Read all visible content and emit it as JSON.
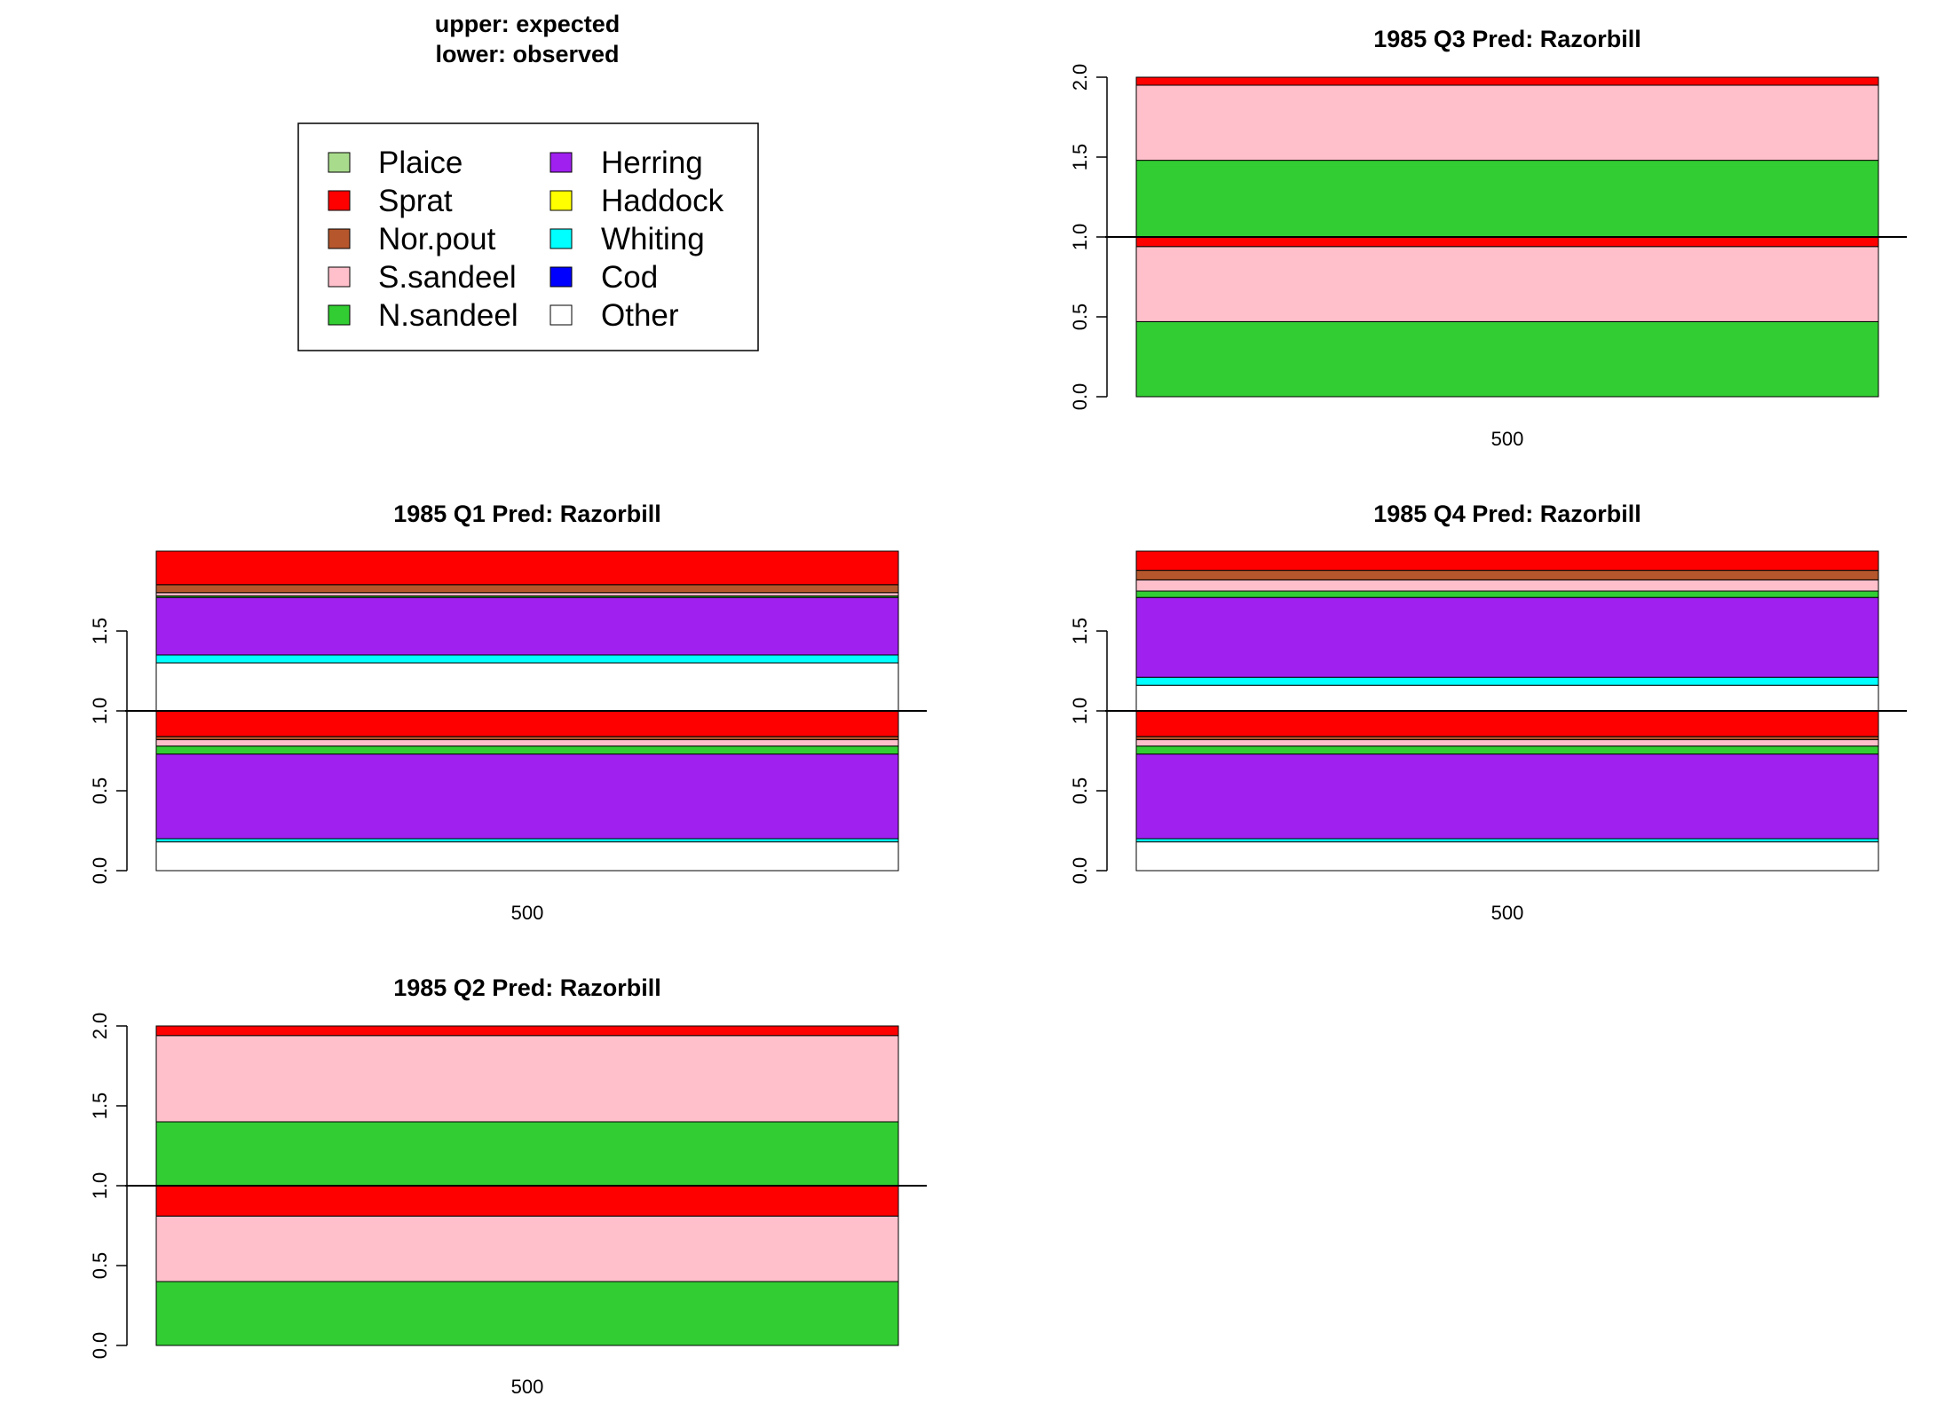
{
  "header": {
    "line1": "upper: expected",
    "line2": "lower: observed"
  },
  "legend": {
    "items": [
      {
        "label": "Plaice",
        "color": "#a8dc8c"
      },
      {
        "label": "Sprat",
        "color": "#ff0000"
      },
      {
        "label": "Nor.pout",
        "color": "#b5562c"
      },
      {
        "label": "S.sandeel",
        "color": "#ffc0cb"
      },
      {
        "label": "N.sandeel",
        "color": "#32cd32"
      },
      {
        "label": "Herring",
        "color": "#a020f0"
      },
      {
        "label": "Haddock",
        "color": "#ffff00"
      },
      {
        "label": "Whiting",
        "color": "#00ffff"
      },
      {
        "label": "Cod",
        "color": "#0000ff"
      },
      {
        "label": "Other",
        "color": "#ffffff"
      }
    ]
  },
  "chart_data": [
    {
      "type": "bar",
      "stacked": true,
      "title": "1985 Q3  Pred: Razorbill",
      "categories": [
        "500"
      ],
      "ylim": [
        0,
        2
      ],
      "yticks": [
        "0.0",
        "0.5",
        "1.0",
        "1.5",
        "2.0"
      ],
      "yticks_values": [
        0,
        0.5,
        1,
        1.5,
        2
      ],
      "reference_line": 1.0,
      "observed_lower": [
        {
          "species": "N.sandeel",
          "value": 0.47
        },
        {
          "species": "S.sandeel",
          "value": 0.47
        },
        {
          "species": "Sprat",
          "value": 0.06
        }
      ],
      "expected_upper": [
        {
          "species": "N.sandeel",
          "value": 0.48
        },
        {
          "species": "S.sandeel",
          "value": 0.47
        },
        {
          "species": "Sprat",
          "value": 0.05
        }
      ]
    },
    {
      "type": "bar",
      "stacked": true,
      "title": "1985 Q1  Pred: Razorbill",
      "categories": [
        "500"
      ],
      "ylim": [
        0,
        2
      ],
      "yticks": [
        "0.0",
        "0.5",
        "1.0",
        "1.5"
      ],
      "yticks_values": [
        0,
        0.5,
        1,
        1.5
      ],
      "reference_line": 1.0,
      "observed_lower": [
        {
          "species": "Other",
          "value": 0.18
        },
        {
          "species": "Whiting",
          "value": 0.02
        },
        {
          "species": "Herring",
          "value": 0.53
        },
        {
          "species": "N.sandeel",
          "value": 0.05
        },
        {
          "species": "S.sandeel",
          "value": 0.04
        },
        {
          "species": "Nor.pout",
          "value": 0.02
        },
        {
          "species": "Sprat",
          "value": 0.16
        }
      ],
      "expected_upper": [
        {
          "species": "Other",
          "value": 0.3
        },
        {
          "species": "Whiting",
          "value": 0.05
        },
        {
          "species": "Herring",
          "value": 0.36
        },
        {
          "species": "N.sandeel",
          "value": 0.01
        },
        {
          "species": "S.sandeel",
          "value": 0.02
        },
        {
          "species": "Nor.pout",
          "value": 0.05
        },
        {
          "species": "Sprat",
          "value": 0.21
        }
      ]
    },
    {
      "type": "bar",
      "stacked": true,
      "title": "1985 Q4  Pred: Razorbill",
      "categories": [
        "500"
      ],
      "ylim": [
        0,
        2
      ],
      "yticks": [
        "0.0",
        "0.5",
        "1.0",
        "1.5"
      ],
      "yticks_values": [
        0,
        0.5,
        1,
        1.5
      ],
      "reference_line": 1.0,
      "observed_lower": [
        {
          "species": "Other",
          "value": 0.18
        },
        {
          "species": "Whiting",
          "value": 0.02
        },
        {
          "species": "Herring",
          "value": 0.53
        },
        {
          "species": "N.sandeel",
          "value": 0.05
        },
        {
          "species": "S.sandeel",
          "value": 0.04
        },
        {
          "species": "Nor.pout",
          "value": 0.02
        },
        {
          "species": "Sprat",
          "value": 0.16
        }
      ],
      "expected_upper": [
        {
          "species": "Other",
          "value": 0.16
        },
        {
          "species": "Whiting",
          "value": 0.05
        },
        {
          "species": "Herring",
          "value": 0.5
        },
        {
          "species": "N.sandeel",
          "value": 0.04
        },
        {
          "species": "S.sandeel",
          "value": 0.07
        },
        {
          "species": "Nor.pout",
          "value": 0.06
        },
        {
          "species": "Sprat",
          "value": 0.12
        }
      ]
    },
    {
      "type": "bar",
      "stacked": true,
      "title": "1985 Q2  Pred: Razorbill",
      "categories": [
        "500"
      ],
      "ylim": [
        0,
        2
      ],
      "yticks": [
        "0.0",
        "0.5",
        "1.0",
        "1.5",
        "2.0"
      ],
      "yticks_values": [
        0,
        0.5,
        1,
        1.5,
        2
      ],
      "reference_line": 1.0,
      "observed_lower": [
        {
          "species": "N.sandeel",
          "value": 0.4
        },
        {
          "species": "S.sandeel",
          "value": 0.41
        },
        {
          "species": "Sprat",
          "value": 0.19
        }
      ],
      "expected_upper": [
        {
          "species": "N.sandeel",
          "value": 0.4
        },
        {
          "species": "S.sandeel",
          "value": 0.54
        },
        {
          "species": "Sprat",
          "value": 0.06
        }
      ]
    }
  ]
}
